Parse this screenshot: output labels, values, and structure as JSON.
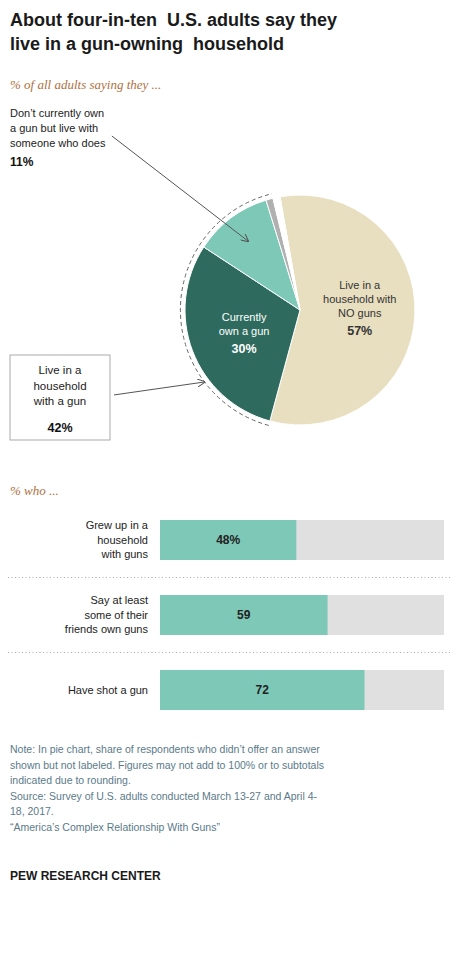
{
  "chart_data": [
    {
      "type": "pie",
      "title": "About four-in-ten  U.S. adults say they\nlive in a gun-owning  household",
      "subtitle": "% of all adults saying they ...",
      "categories": [
        "Live in a\nhousehold with\nNO guns",
        "Currently\nown a gun",
        "Don’t currently own\na gun but live with\nsomeone who does",
        null,
        null
      ],
      "values": [
        57,
        30,
        11,
        1,
        1
      ],
      "value_labels": [
        "57%",
        "30%",
        "11%",
        null,
        null
      ],
      "colors": [
        "#e8dfc0",
        "#2e6b5e",
        "#7ec8b8",
        "#b0b0b0",
        "#ffffff"
      ],
      "data_labels": true,
      "annotations": [
        {
          "text": "Live in a\nhousehold\nwith a gun",
          "value": 42,
          "label": "42%"
        }
      ]
    },
    {
      "type": "bar",
      "orientation": "horizontal",
      "subtitle": "% who ...",
      "categories": [
        "Grew up in a\nhousehold\nwith guns",
        "Say at least\nsome of their\nfriends own guns",
        "Have shot a gun"
      ],
      "values": [
        48,
        59,
        72
      ],
      "value_labels": [
        "48%",
        "59",
        "72"
      ],
      "color": "#7ec8b8",
      "xlim": [
        0,
        100
      ],
      "tick_labels": false,
      "data_labels": true,
      "note": "Note: In pie chart, share of respondents who didn’t offer an answer\nshown but not labeled. Figures may not add to 100% or to subtotals\nindicated due to rounding.\nSource: Survey of U.S. adults conducted March 13-27 and April 4-\n18, 2017.\n“America’s Complex Relationship With Guns”",
      "footer": "PEW RESEARCH CENTER"
    }
  ]
}
